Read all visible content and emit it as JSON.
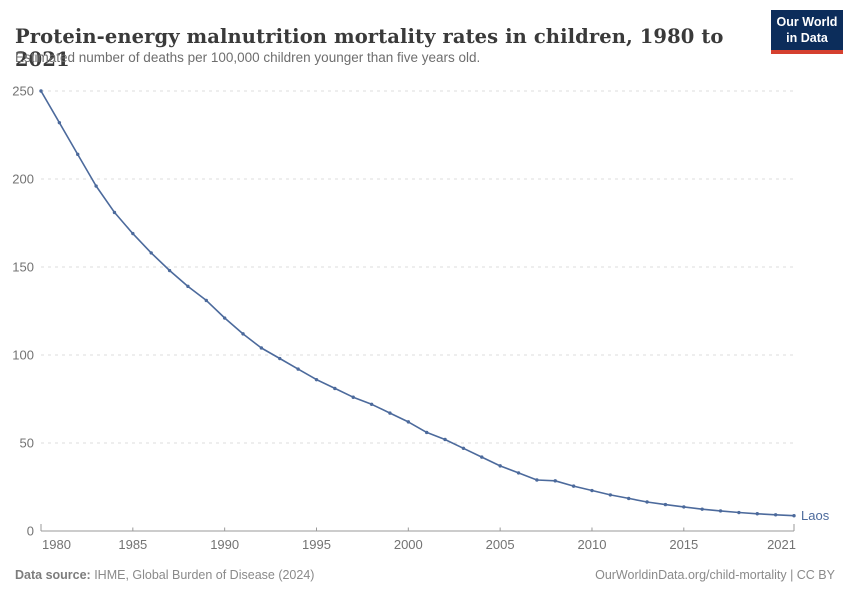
{
  "chart_data": {
    "type": "line",
    "title": "Protein-energy malnutrition mortality rates in children, 1980 to 2021",
    "subtitle": "Estimated number of deaths per 100,000 children younger than five years old.",
    "xlabel": "",
    "ylabel": "",
    "x": [
      1980,
      1981,
      1982,
      1983,
      1984,
      1985,
      1986,
      1987,
      1988,
      1989,
      1990,
      1991,
      1992,
      1993,
      1994,
      1995,
      1996,
      1997,
      1998,
      1999,
      2000,
      2001,
      2002,
      2003,
      2004,
      2005,
      2006,
      2007,
      2008,
      2009,
      2010,
      2011,
      2012,
      2013,
      2014,
      2015,
      2016,
      2017,
      2018,
      2019,
      2020,
      2021
    ],
    "series": [
      {
        "name": "Laos",
        "color": "#4C6A9C",
        "values": [
          250,
          232,
          214,
          196,
          181,
          169,
          158,
          148,
          139,
          131,
          121,
          112,
          104,
          98,
          92,
          86,
          81,
          76,
          72,
          67,
          62,
          56,
          52,
          47,
          42,
          37,
          33,
          29,
          28.5,
          25.5,
          23,
          20.5,
          18.5,
          16.5,
          15,
          13.7,
          12.4,
          11.4,
          10.5,
          9.8,
          9.2,
          8.7
        ]
      }
    ],
    "ylim": [
      0,
      250
    ],
    "yticks": [
      0,
      50,
      100,
      150,
      200,
      250
    ],
    "xticks": [
      1980,
      1985,
      1990,
      1995,
      2000,
      2005,
      2010,
      2015,
      2021
    ],
    "grid": "horizontal dashed",
    "legend_position": "end-of-line label"
  },
  "logo": {
    "line1": "Our World",
    "line2": "in Data"
  },
  "footer": {
    "source_label": "Data source:",
    "source_text": " IHME, Global Burden of Disease (2024)",
    "credit_text": "OurWorldinData.org/child-mortality | CC BY"
  },
  "colors": {
    "line": "#4C6A9C",
    "grid": "#dcdcdc",
    "axis": "#999999",
    "tick_text": "#737373",
    "logo_bg": "#0c2d5b",
    "logo_stripe": "#d5402f"
  }
}
